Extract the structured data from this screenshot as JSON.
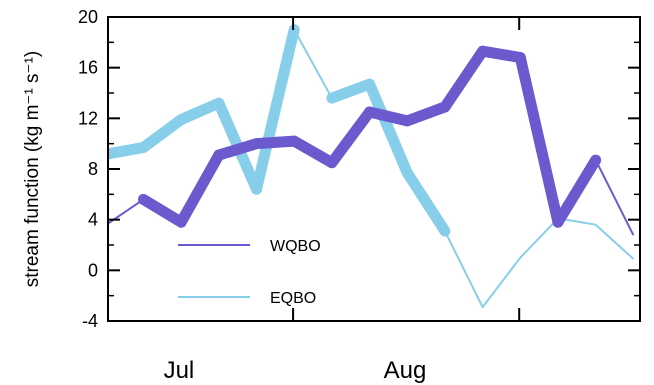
{
  "chart_data": {
    "type": "line",
    "ylabel": "stream function (kg m⁻¹ s⁻¹)",
    "ylim": [
      -4,
      20
    ],
    "yticks": [
      -4,
      0,
      4,
      8,
      12,
      16,
      20
    ],
    "xlim": [
      0,
      24
    ],
    "x_major_ticks": [
      8.35,
      18.55
    ],
    "month_labels": [
      {
        "text": "Jul",
        "x": 3.2
      },
      {
        "text": "Aug",
        "x": 13.4
      }
    ],
    "legend_position": "lower-left",
    "legend": [
      {
        "name": "WQBO",
        "color": "#6a5acd"
      },
      {
        "name": "EQBO",
        "color": "#87ceeb"
      }
    ],
    "series": [
      {
        "name": "WQBO",
        "color": "#6a5acd",
        "x": [
          0,
          1.6,
          3.3,
          5.0,
          6.7,
          8.4,
          10.1,
          11.8,
          13.5,
          15.2,
          16.9,
          18.6,
          20.3,
          22.0,
          23.7
        ],
        "values": [
          3.7,
          5.6,
          3.8,
          9.1,
          10.0,
          10.2,
          8.5,
          12.5,
          11.8,
          12.9,
          17.3,
          16.8,
          3.8,
          8.7,
          2.8
        ],
        "thick": [
          false,
          true,
          true,
          true,
          true,
          true,
          true,
          true,
          true,
          true,
          true,
          true,
          true,
          false,
          false
        ]
      },
      {
        "name": "EQBO",
        "color": "#87ceeb",
        "x": [
          0,
          1.6,
          3.3,
          5.0,
          6.7,
          8.4,
          10.1,
          11.8,
          13.5,
          15.2,
          16.9,
          18.6,
          20.3,
          22.0,
          23.7
        ],
        "values": [
          9.2,
          9.7,
          11.9,
          13.2,
          6.4,
          19.0,
          13.6,
          14.7,
          7.7,
          3.1,
          -2.9,
          1.0,
          4.1,
          3.6,
          0.9
        ],
        "thick": [
          true,
          true,
          true,
          true,
          true,
          false,
          true,
          true,
          true,
          false,
          false,
          false,
          false,
          false,
          false
        ]
      }
    ]
  }
}
